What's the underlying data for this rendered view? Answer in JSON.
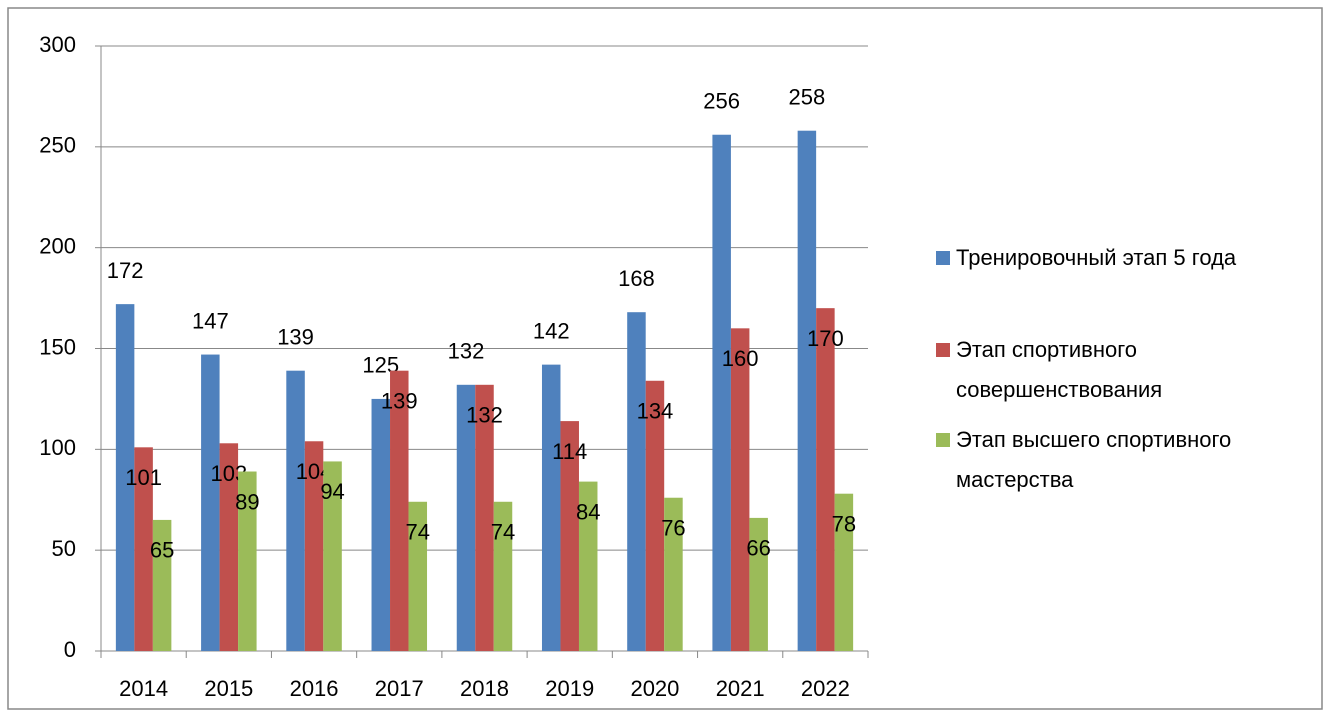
{
  "chart_data": {
    "type": "bar",
    "categories": [
      "2014",
      "2015",
      "2016",
      "2017",
      "2018",
      "2019",
      "2020",
      "2021",
      "2022"
    ],
    "series": [
      {
        "name": "Тренировочный этап 5 года",
        "color": "#4f81bd",
        "values": [
          172,
          147,
          139,
          125,
          132,
          142,
          168,
          256,
          258
        ]
      },
      {
        "name": "Этап спортивного совершенствования",
        "color": "#c0504d",
        "values": [
          101,
          103,
          104,
          139,
          132,
          114,
          134,
          160,
          170
        ]
      },
      {
        "name": "Этап высшего спортивного мастерства",
        "color": "#9bbb59",
        "values": [
          65,
          89,
          94,
          74,
          74,
          84,
          76,
          66,
          78
        ]
      }
    ],
    "ylim": [
      0,
      300
    ],
    "yticks": [
      0,
      50,
      100,
      150,
      200,
      250,
      300
    ],
    "grid": true,
    "legend": "right"
  }
}
